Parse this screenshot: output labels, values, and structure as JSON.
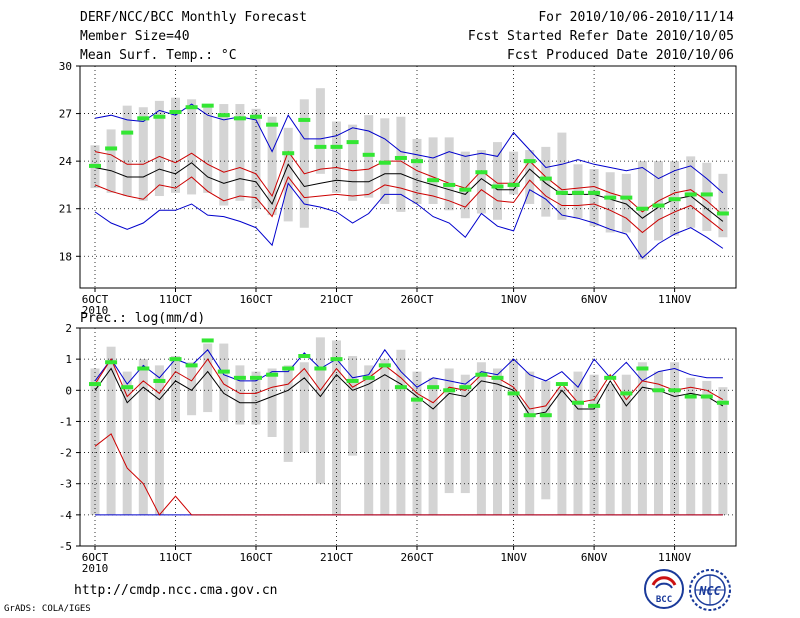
{
  "header": {
    "title": "DERF/NCC/BCC Monthly Forecast",
    "member_size": "Member Size=40",
    "panel1_label": "Mean Surf. Temp.: °C",
    "period": "For 2010/10/06-2010/11/14",
    "start_date": "Fcst Started Refer Date 2010/10/05",
    "produced_date": "Fcst Produced Date 2010/10/06"
  },
  "footer": {
    "url": "http://cmdp.ncc.cma.gov.cn",
    "credit": "GrADS: COLA/IGES",
    "logo_bcc": "BCC",
    "logo_ncc": "NCC"
  },
  "colors": {
    "box": "#d4d4d4",
    "median": "#33e633",
    "mean": "#000000",
    "inner": "#cc0000",
    "outer": "#0000cc"
  },
  "chart_data": [
    {
      "type": "box",
      "title": "Mean Surf. Temp.: °C",
      "x_tick_labels": [
        "6OCT",
        "11OCT",
        "16OCT",
        "21OCT",
        "26OCT",
        "1NOV",
        "6NOV",
        "11NOV"
      ],
      "x_tick_days": [
        1,
        6,
        11,
        16,
        21,
        27,
        32,
        37
      ],
      "year_label": "2010",
      "ylim": [
        16,
        30
      ],
      "yticks": [
        18,
        21,
        24,
        27,
        30
      ],
      "days": 40,
      "box_low": [
        22.3,
        22.0,
        21.8,
        21.5,
        21.8,
        22.0,
        21.9,
        22.0,
        21.2,
        21.5,
        21.0,
        20.6,
        20.2,
        19.8,
        23.2,
        22.0,
        21.5,
        21.7,
        21.3,
        20.8,
        21.3,
        21.3,
        20.9,
        20.4,
        20.7,
        20.3,
        21.9,
        21.3,
        20.5,
        20.3,
        20.4,
        19.9,
        19.5,
        19.5,
        17.8,
        19.0,
        19.3,
        19.8,
        19.6,
        19.2
      ],
      "box_high": [
        25.0,
        26.0,
        27.5,
        27.4,
        27.8,
        28.0,
        27.9,
        27.6,
        27.6,
        27.6,
        27.3,
        26.8,
        26.1,
        27.9,
        28.6,
        26.5,
        26.3,
        26.9,
        26.7,
        26.8,
        25.4,
        25.5,
        25.5,
        24.6,
        24.7,
        25.2,
        24.6,
        24.7,
        24.9,
        25.8,
        23.8,
        23.5,
        23.3,
        23.2,
        24.0,
        24.0,
        24.0,
        24.3,
        23.9,
        23.2
      ],
      "median": [
        23.7,
        24.8,
        25.8,
        26.7,
        26.8,
        27.1,
        27.4,
        27.5,
        26.9,
        26.7,
        26.8,
        26.3,
        24.5,
        26.6,
        24.9,
        24.9,
        25.2,
        24.4,
        23.9,
        24.2,
        24.0,
        22.8,
        22.5,
        22.2,
        23.3,
        22.4,
        22.5,
        24.0,
        22.9,
        22.0,
        22.0,
        22.0,
        21.7,
        21.7,
        21.0,
        21.2,
        21.6,
        21.9,
        21.9,
        20.7
      ],
      "mean": [
        23.6,
        23.4,
        23.0,
        23.0,
        23.5,
        23.2,
        23.9,
        23.0,
        22.6,
        22.9,
        22.7,
        21.3,
        23.8,
        22.4,
        22.6,
        22.8,
        22.7,
        22.7,
        23.2,
        23.2,
        22.8,
        22.5,
        22.2,
        21.9,
        22.9,
        22.2,
        22.2,
        23.5,
        22.6,
        21.9,
        21.9,
        21.9,
        21.6,
        21.3,
        20.4,
        21.1,
        21.6,
        21.8,
        21.0,
        20.2
      ],
      "inner_high": [
        24.6,
        24.4,
        23.8,
        23.8,
        24.3,
        23.9,
        24.5,
        23.8,
        23.3,
        23.6,
        23.2,
        21.8,
        24.6,
        23.2,
        23.5,
        23.6,
        23.4,
        23.5,
        24.0,
        24.0,
        23.4,
        23.0,
        22.6,
        22.3,
        23.4,
        22.6,
        22.6,
        24.0,
        23.0,
        22.2,
        22.3,
        22.4,
        22.0,
        21.7,
        20.8,
        21.5,
        22.0,
        22.2,
        21.5,
        20.6
      ],
      "inner_low": [
        22.5,
        22.1,
        21.8,
        21.6,
        22.5,
        22.3,
        23.0,
        22.1,
        21.5,
        21.8,
        21.7,
        20.5,
        23.0,
        21.7,
        21.8,
        21.9,
        21.8,
        21.9,
        22.5,
        22.3,
        22.0,
        21.8,
        21.5,
        21.1,
        22.2,
        21.5,
        21.4,
        22.8,
        21.8,
        21.2,
        21.2,
        21.3,
        20.9,
        20.4,
        19.5,
        20.3,
        20.8,
        21.2,
        20.4,
        19.6
      ],
      "outer_high": [
        26.7,
        26.9,
        26.6,
        26.5,
        27.2,
        26.9,
        27.6,
        26.9,
        26.6,
        26.8,
        26.6,
        24.6,
        26.9,
        25.4,
        25.4,
        25.6,
        26.1,
        25.9,
        25.4,
        24.6,
        24.4,
        24.2,
        24.6,
        24.3,
        24.5,
        24.3,
        25.8,
        24.7,
        23.6,
        23.8,
        24.1,
        23.8,
        23.6,
        23.4,
        23.6,
        22.9,
        23.4,
        23.7,
        22.9,
        22.0
      ],
      "outer_low": [
        20.8,
        20.1,
        19.7,
        20.1,
        20.9,
        20.9,
        21.3,
        20.6,
        20.5,
        20.2,
        19.8,
        18.7,
        22.6,
        21.3,
        21.1,
        20.8,
        20.1,
        20.7,
        21.9,
        21.9,
        21.3,
        20.5,
        20.1,
        19.2,
        20.7,
        19.9,
        19.6,
        22.2,
        21.6,
        20.6,
        20.4,
        20.1,
        19.7,
        19.4,
        17.9,
        18.8,
        19.4,
        19.8,
        19.2,
        18.5
      ]
    },
    {
      "type": "box",
      "title": "Prec.: log(mm/d)",
      "x_tick_labels": [
        "6OCT",
        "11OCT",
        "16OCT",
        "21OCT",
        "26OCT",
        "1NOV",
        "6NOV",
        "11NOV"
      ],
      "x_tick_days": [
        1,
        6,
        11,
        16,
        21,
        27,
        32,
        37
      ],
      "year_label": "2010",
      "ylim": [
        -5,
        2
      ],
      "yticks": [
        -5,
        -4,
        -3,
        -2,
        -1,
        0,
        1,
        2
      ],
      "days": 40,
      "box_low": [
        -4,
        -4,
        -4,
        -4,
        -4,
        -1.0,
        -0.8,
        -0.7,
        -1.0,
        -1.1,
        -1.1,
        -1.5,
        -2.3,
        -2.0,
        -3.0,
        -4,
        -2.1,
        -4,
        -4,
        -4,
        -4,
        -4,
        -3.3,
        -3.3,
        -4,
        -4,
        -4,
        -4,
        -3.5,
        -4,
        -4,
        -4,
        -4,
        -4,
        -4,
        -4,
        -4,
        -4,
        -4,
        -4
      ],
      "box_high": [
        0.7,
        1.4,
        0.6,
        1.0,
        0.8,
        1.1,
        0.9,
        1.5,
        1.5,
        0.8,
        0.6,
        0.7,
        0.8,
        0.9,
        1.7,
        1.6,
        1.1,
        0.8,
        1.0,
        1.3,
        0.6,
        0.4,
        0.7,
        0.5,
        0.9,
        0.7,
        1.0,
        0.6,
        0.3,
        0.1,
        0.6,
        0.5,
        0.2,
        0.5,
        0.9,
        0.6,
        0.9,
        0.4,
        0.3,
        0.1
      ],
      "median": [
        0.2,
        0.9,
        0.1,
        0.7,
        0.3,
        1.0,
        0.8,
        1.6,
        0.6,
        0.4,
        0.4,
        0.5,
        0.7,
        1.1,
        0.7,
        1.0,
        0.3,
        0.4,
        0.8,
        0.1,
        -0.3,
        0.1,
        0.0,
        0.1,
        0.5,
        0.4,
        -0.1,
        -0.8,
        -0.8,
        0.2,
        -0.4,
        -0.5,
        0.4,
        -0.1,
        0.7,
        0.0,
        0.0,
        -0.2,
        -0.2,
        -0.4
      ],
      "mean": [
        0.0,
        0.7,
        -0.4,
        0.1,
        -0.3,
        0.3,
        0.0,
        0.6,
        -0.1,
        -0.4,
        -0.4,
        -0.2,
        0.0,
        0.4,
        -0.2,
        0.5,
        0.0,
        0.2,
        0.5,
        0.2,
        -0.2,
        -0.6,
        -0.1,
        -0.2,
        0.3,
        0.2,
        0.0,
        -0.8,
        -0.7,
        0.0,
        -0.6,
        -0.6,
        0.3,
        -0.5,
        0.1,
        0.0,
        -0.2,
        -0.1,
        -0.2,
        -0.5
      ],
      "inner_high": [
        0.2,
        1.0,
        -0.2,
        0.3,
        -0.1,
        0.6,
        0.3,
        1.0,
        0.2,
        -0.1,
        -0.1,
        0.1,
        0.2,
        0.7,
        0.0,
        0.7,
        0.1,
        0.4,
        0.8,
        0.4,
        -0.1,
        -0.4,
        0.1,
        0.0,
        0.5,
        0.4,
        0.1,
        -0.6,
        -0.5,
        0.2,
        -0.4,
        -0.3,
        0.5,
        -0.3,
        0.3,
        0.2,
        0.0,
        0.1,
        0.0,
        -0.3
      ],
      "inner_low": [
        -1.8,
        -1.4,
        -2.5,
        -3.0,
        -4,
        -3.4,
        -4,
        -4,
        -4,
        -4,
        -4,
        -4,
        -4,
        -4,
        -4,
        -4,
        -4,
        -4,
        -4,
        -4,
        -4,
        -4,
        -4,
        -4,
        -4,
        -4,
        -4,
        -4,
        -4,
        -4,
        -4,
        -4,
        -4,
        -4,
        -4,
        -4,
        -4,
        -4,
        -4,
        -4
      ],
      "outer_high": [
        0.3,
        1.0,
        0.2,
        0.8,
        0.4,
        1.0,
        0.8,
        1.3,
        0.5,
        0.3,
        0.3,
        0.6,
        0.6,
        1.2,
        0.7,
        1.0,
        0.4,
        0.5,
        1.3,
        0.6,
        0.1,
        0.4,
        0.3,
        0.2,
        0.6,
        0.5,
        1.0,
        0.5,
        0.3,
        0.6,
        0.1,
        1.0,
        0.4,
        0.9,
        0.3,
        0.6,
        0.7,
        0.5,
        0.4,
        0.4
      ],
      "outer_low": [
        -4,
        -4,
        -4,
        -4,
        -4,
        -4,
        -4,
        -4,
        -4,
        -4,
        -4,
        -4,
        -4,
        -4,
        -4,
        -4,
        -4,
        -4,
        -4,
        -4,
        -4,
        -4,
        -4,
        -4,
        -4,
        -4,
        -4,
        -4,
        -4,
        -4,
        -4,
        -4,
        -4,
        -4,
        -4,
        -4,
        -4,
        -4,
        -4,
        -4
      ]
    }
  ]
}
